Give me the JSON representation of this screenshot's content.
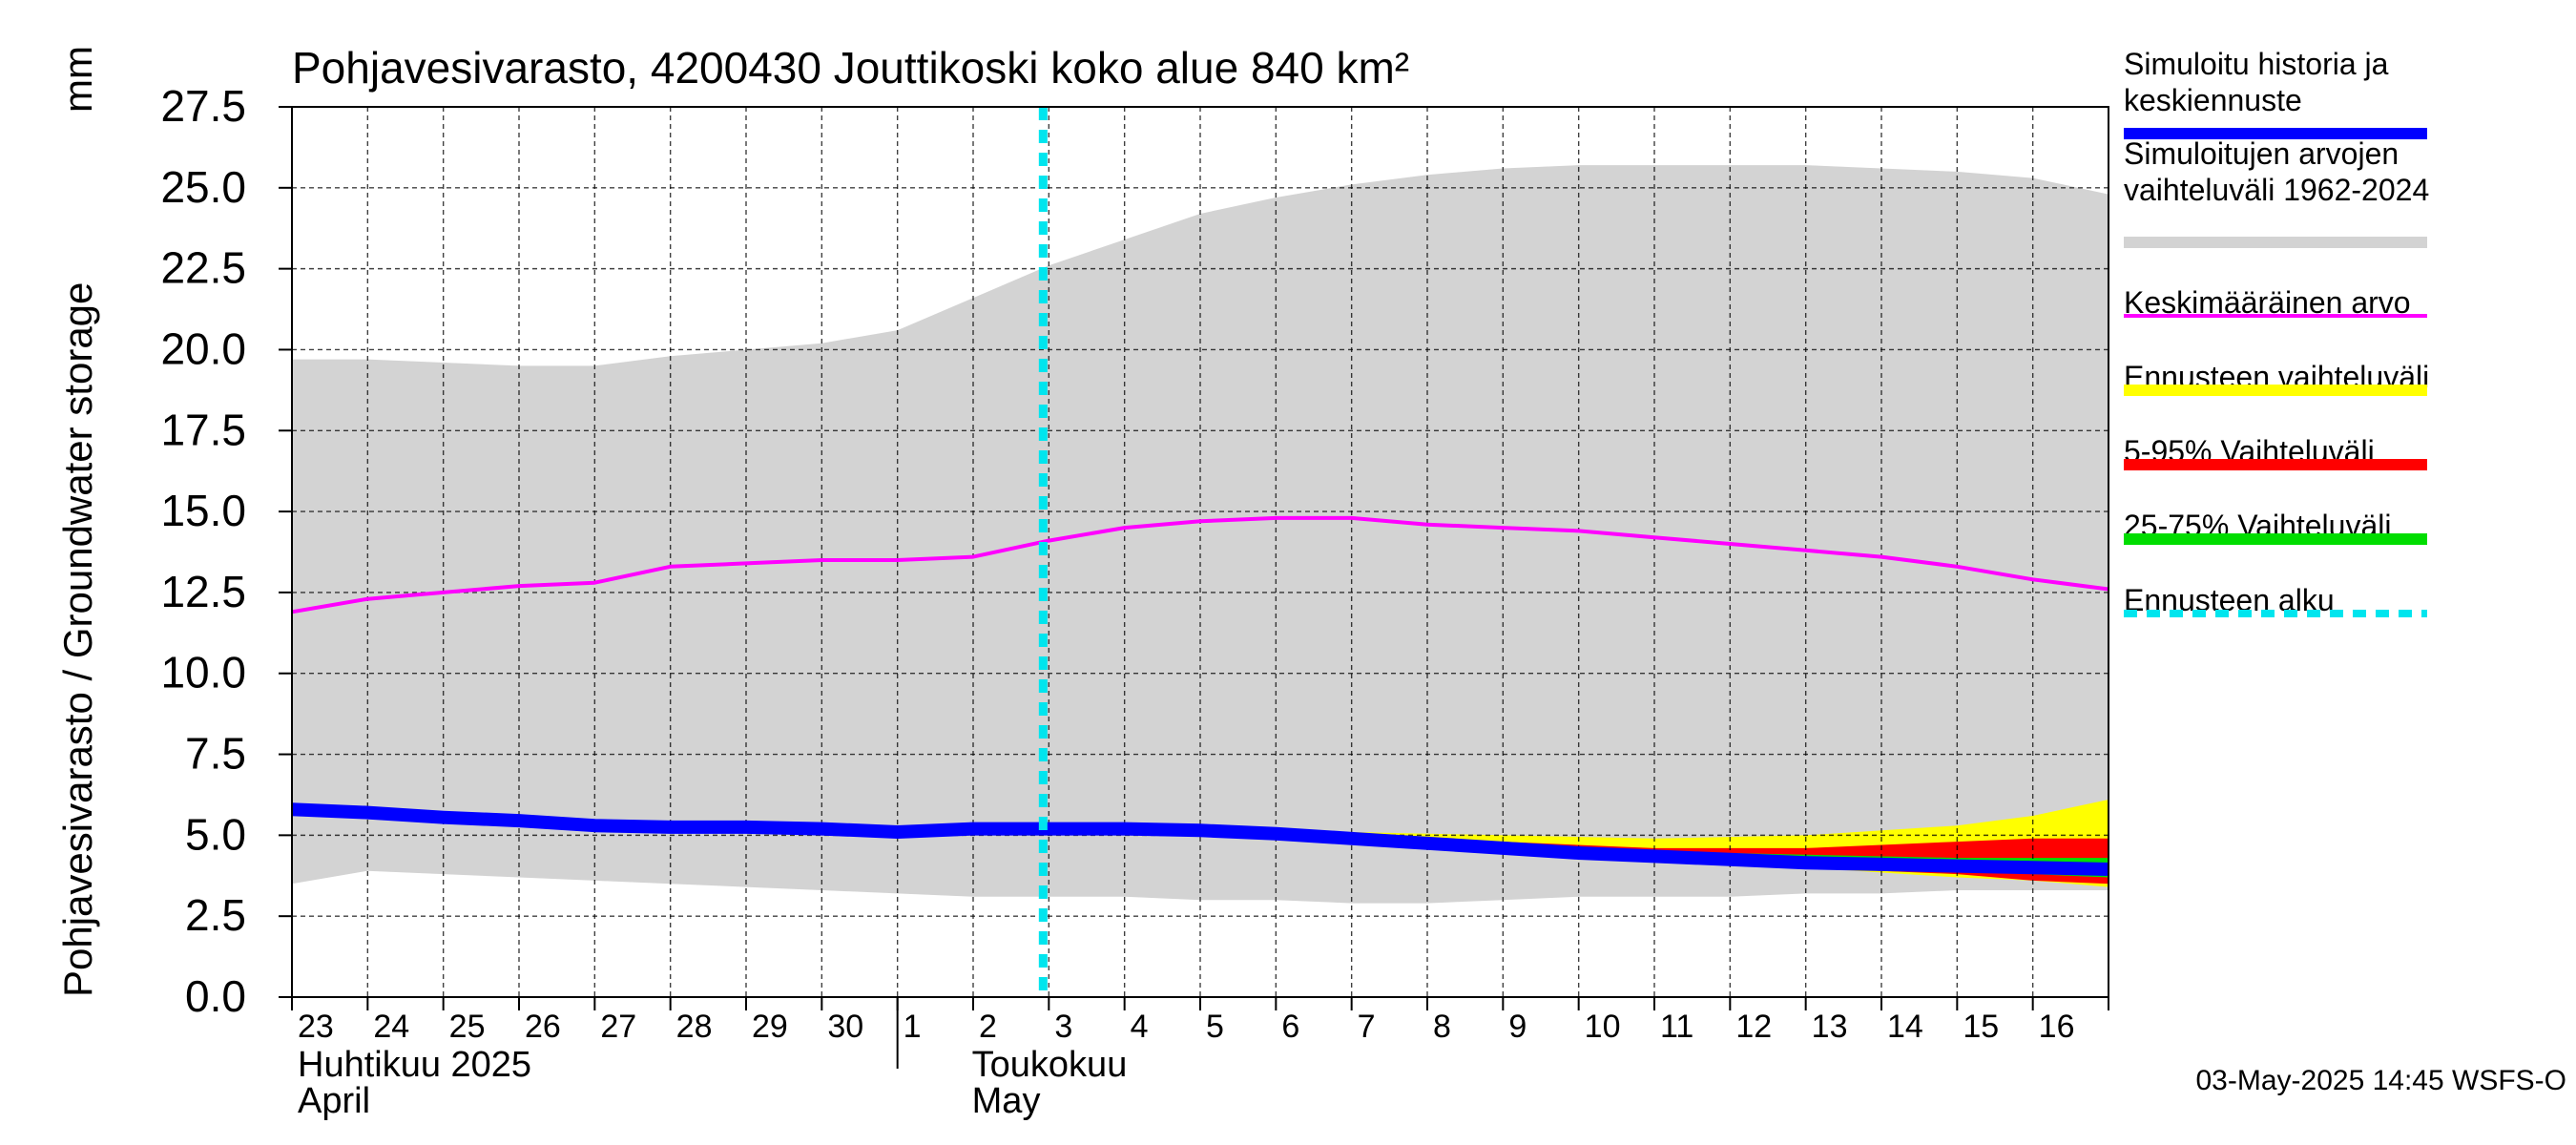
{
  "chart_data": {
    "type": "area",
    "title": "Pohjavesivarasto, 4200430 Jouttikoski koko alue 840 km²",
    "ylabel": "Pohjavesivarasto / Groundwater storage",
    "yunit": "mm",
    "ylim": [
      0,
      27.5
    ],
    "yticks": [
      "0.0",
      "2.5",
      "5.0",
      "7.5",
      "10.0",
      "12.5",
      "15.0",
      "17.5",
      "20.0",
      "22.5",
      "25.0",
      "27.5"
    ],
    "xlim": [
      "2025-04-23",
      "2025-05-17"
    ],
    "x_tick_labels": [
      "23",
      "24",
      "25",
      "26",
      "27",
      "28",
      "29",
      "30",
      "1",
      "2",
      "3",
      "4",
      "5",
      "6",
      "7",
      "8",
      "9",
      "10",
      "11",
      "12",
      "13",
      "14",
      "15",
      "16"
    ],
    "month_labels": [
      {
        "line1": "Huhtikuu  2025",
        "line2": "April"
      },
      {
        "line1": "Toukokuu",
        "line2": "May"
      }
    ],
    "forecast_start": "2025-05-03",
    "grid": true,
    "legend_placement": "right",
    "series": [
      {
        "name": "Simuloitujen arvojen vaihteluväli 1962-2024",
        "kind": "band",
        "color": "#d3d3d3",
        "x": [
          "2025-04-23",
          "2025-04-24",
          "2025-04-25",
          "2025-04-26",
          "2025-04-27",
          "2025-04-28",
          "2025-04-29",
          "2025-04-30",
          "2025-05-01",
          "2025-05-02",
          "2025-05-03",
          "2025-05-04",
          "2025-05-05",
          "2025-05-06",
          "2025-05-07",
          "2025-05-08",
          "2025-05-09",
          "2025-05-10",
          "2025-05-11",
          "2025-05-12",
          "2025-05-13",
          "2025-05-14",
          "2025-05-15",
          "2025-05-16",
          "2025-05-17"
        ],
        "upper": [
          19.7,
          19.7,
          19.6,
          19.5,
          19.5,
          19.8,
          20.0,
          20.2,
          20.6,
          21.6,
          22.6,
          23.4,
          24.2,
          24.7,
          25.1,
          25.4,
          25.6,
          25.7,
          25.7,
          25.7,
          25.7,
          25.6,
          25.5,
          25.3,
          24.8
        ],
        "lower": [
          3.5,
          3.9,
          3.8,
          3.7,
          3.6,
          3.5,
          3.4,
          3.3,
          3.2,
          3.1,
          3.1,
          3.1,
          3.0,
          3.0,
          2.9,
          2.9,
          3.0,
          3.1,
          3.1,
          3.1,
          3.2,
          3.2,
          3.3,
          3.3,
          3.3
        ]
      },
      {
        "name": "Keskimääräinen arvo",
        "kind": "line",
        "color": "#ff00ff",
        "x": [
          "2025-04-23",
          "2025-04-24",
          "2025-04-25",
          "2025-04-26",
          "2025-04-27",
          "2025-04-28",
          "2025-04-29",
          "2025-04-30",
          "2025-05-01",
          "2025-05-02",
          "2025-05-03",
          "2025-05-04",
          "2025-05-05",
          "2025-05-06",
          "2025-05-07",
          "2025-05-08",
          "2025-05-09",
          "2025-05-10",
          "2025-05-11",
          "2025-05-12",
          "2025-05-13",
          "2025-05-14",
          "2025-05-15",
          "2025-05-16",
          "2025-05-17"
        ],
        "values": [
          11.9,
          12.3,
          12.5,
          12.7,
          12.8,
          13.3,
          13.4,
          13.5,
          13.5,
          13.6,
          14.1,
          14.5,
          14.7,
          14.8,
          14.8,
          14.6,
          14.5,
          14.4,
          14.2,
          14.0,
          13.8,
          13.6,
          13.3,
          12.9,
          12.6
        ]
      },
      {
        "name": "Ennusteen vaihteluväli",
        "kind": "band",
        "color": "#ffff00",
        "x": [
          "2025-05-03",
          "2025-05-05",
          "2025-05-07",
          "2025-05-09",
          "2025-05-11",
          "2025-05-13",
          "2025-05-15",
          "2025-05-16",
          "2025-05-17"
        ],
        "upper": [
          5.2,
          5.2,
          5.1,
          5.0,
          4.9,
          5.0,
          5.3,
          5.6,
          6.1
        ],
        "lower": [
          5.2,
          5.1,
          4.9,
          4.6,
          4.3,
          4.0,
          3.7,
          3.6,
          3.4
        ]
      },
      {
        "name": "5-95% Vaihteluväli",
        "kind": "band",
        "color": "#ff0000",
        "x": [
          "2025-05-03",
          "2025-05-05",
          "2025-05-07",
          "2025-05-09",
          "2025-05-11",
          "2025-05-13",
          "2025-05-15",
          "2025-05-16",
          "2025-05-17"
        ],
        "upper": [
          5.2,
          5.2,
          5.0,
          4.8,
          4.6,
          4.6,
          4.8,
          4.9,
          4.9
        ],
        "lower": [
          5.2,
          5.1,
          4.9,
          4.6,
          4.3,
          4.0,
          3.8,
          3.6,
          3.5
        ]
      },
      {
        "name": "25-75% Vaihteluväli",
        "kind": "band",
        "color": "#00dd00",
        "x": [
          "2025-05-03",
          "2025-05-05",
          "2025-05-07",
          "2025-05-09",
          "2025-05-11",
          "2025-05-13",
          "2025-05-15",
          "2025-05-16",
          "2025-05-17"
        ],
        "upper": [
          5.2,
          5.1,
          5.0,
          4.7,
          4.5,
          4.4,
          4.3,
          4.3,
          4.3
        ],
        "lower": [
          5.2,
          5.1,
          4.9,
          4.6,
          4.3,
          4.1,
          3.9,
          3.8,
          3.7
        ]
      },
      {
        "name": "Simuloitu historia ja keskiennuste",
        "kind": "line",
        "color": "#0000ff",
        "x": [
          "2025-04-23",
          "2025-04-24",
          "2025-04-25",
          "2025-04-26",
          "2025-04-27",
          "2025-04-28",
          "2025-04-29",
          "2025-04-30",
          "2025-05-01",
          "2025-05-02",
          "2025-05-03",
          "2025-05-04",
          "2025-05-05",
          "2025-05-06",
          "2025-05-07",
          "2025-05-08",
          "2025-05-09",
          "2025-05-10",
          "2025-05-11",
          "2025-05-12",
          "2025-05-13",
          "2025-05-14",
          "2025-05-15",
          "2025-05-16",
          "2025-05-17"
        ],
        "values": [
          5.8,
          5.7,
          5.55,
          5.45,
          5.3,
          5.25,
          5.25,
          5.2,
          5.1,
          5.2,
          5.2,
          5.2,
          5.15,
          5.05,
          4.9,
          4.75,
          4.6,
          4.45,
          4.35,
          4.25,
          4.15,
          4.1,
          4.05,
          4.0,
          3.95
        ]
      }
    ],
    "legend": [
      {
        "label": "Simuloitu historia ja keskiennuste",
        "color": "#0000ff",
        "style": "thick"
      },
      {
        "label": "Simuloitujen arvojen vaihteluväli 1962-2024",
        "color": "#d3d3d3",
        "style": "thick"
      },
      {
        "label": "Keskimääräinen arvo",
        "color": "#ff00ff",
        "style": "thin"
      },
      {
        "label": "Ennusteen vaihteluväli",
        "color": "#ffff00",
        "style": "thick"
      },
      {
        "label": "5-95% Vaihteluväli",
        "color": "#ff0000",
        "style": "thick"
      },
      {
        "label": "25-75% Vaihteluväli",
        "color": "#00dd00",
        "style": "thick"
      },
      {
        "label": "Ennusteen alku",
        "color": "#00e5ee",
        "style": "dashed"
      }
    ],
    "footer": "03-May-2025 14:45 WSFS-O"
  }
}
